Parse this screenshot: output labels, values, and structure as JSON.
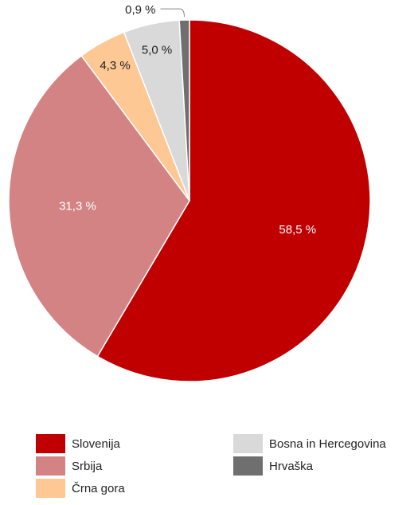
{
  "chart_data": {
    "type": "pie",
    "categories": [
      "Slovenija",
      "Srbija",
      "Črna gora",
      "Bosna in Hercegovina",
      "Hrvaška"
    ],
    "values": [
      58.5,
      31.3,
      4.3,
      5.0,
      0.9
    ],
    "value_labels": [
      "58,5 %",
      "31,3 %",
      "4,3 %",
      "5,0 %",
      "0,9 %"
    ],
    "colors": [
      "#c00000",
      "#d38383",
      "#fdc894",
      "#d9d9d9",
      "#6f6f6f"
    ],
    "legend": "bottom"
  }
}
